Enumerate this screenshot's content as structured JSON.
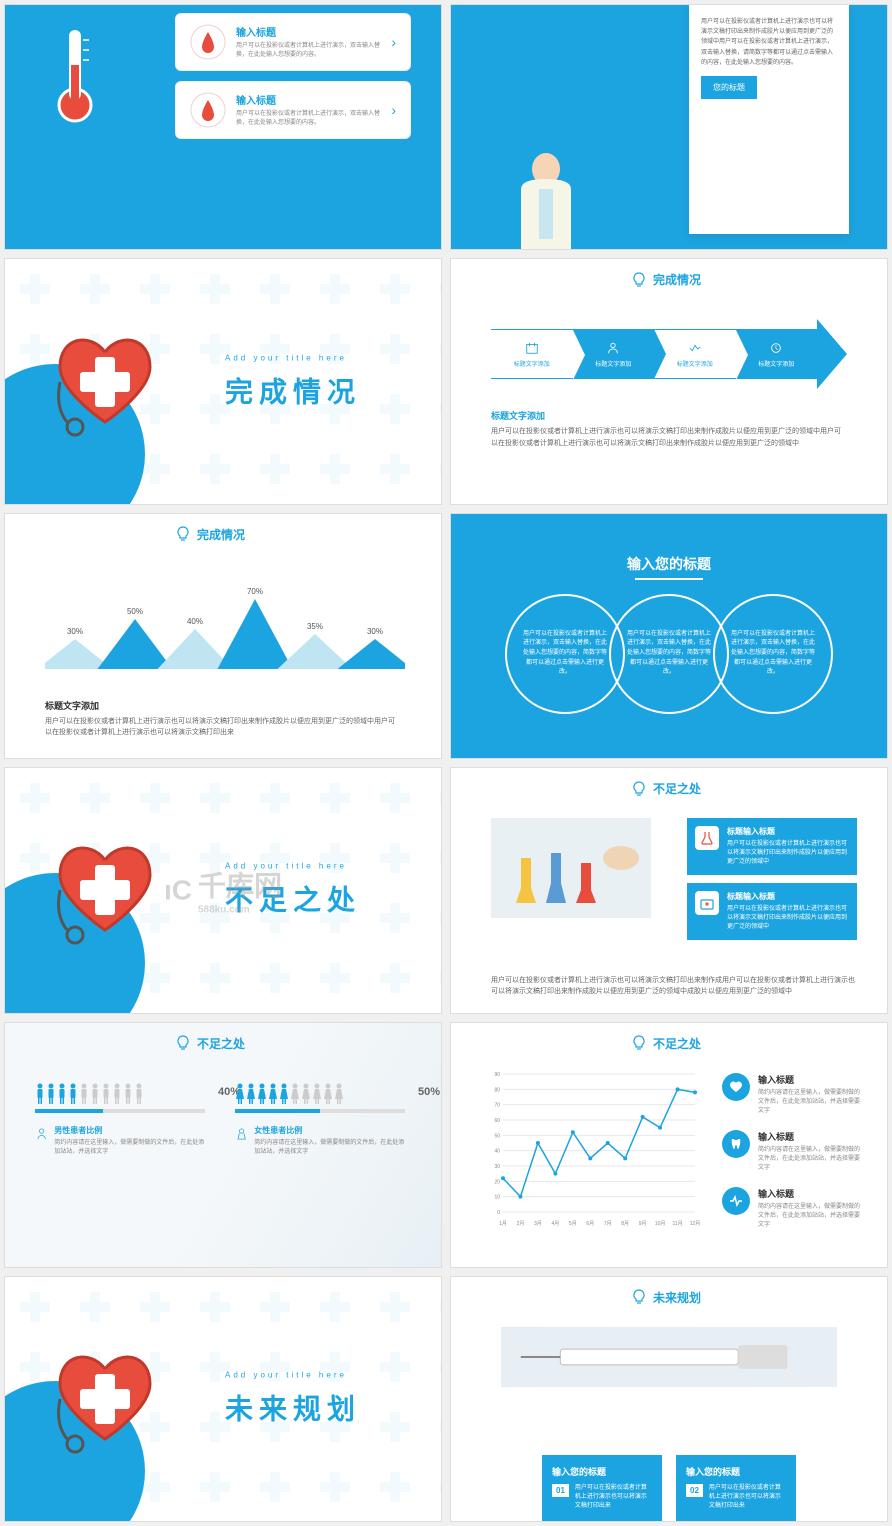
{
  "colors": {
    "primary": "#1ca4e0",
    "accent_red": "#e74c3c",
    "text_grey": "#888888",
    "bg": "#ffffff"
  },
  "watermark": {
    "main": "千库网",
    "sub": "588ku.com"
  },
  "slide1": {
    "cards": [
      {
        "title": "输入标题",
        "desc": "用户可以在投影仪或者计算机上进行演示，双击输入替换，在此处输入您想要的内容。"
      },
      {
        "title": "输入标题",
        "desc": "用户可以在投影仪或者计算机上进行演示，双击输入替换，在此处输入您想要的内容。"
      }
    ]
  },
  "slide2": {
    "desc": "用户可以在投影仪或者计算机上进行演示也可以将演示文稿打印出来制作成胶片以便应用到更广泛的领域中用户可以在投影仪或者计算机上进行演示，双击输入替换，请简数字等都可以通过点击需输入的内容，在此处输入您想要的内容。",
    "button": "您的标题"
  },
  "slide3": {
    "sub": "Add your title here",
    "main": "完成情况"
  },
  "slide4": {
    "header": "完成情况",
    "steps": [
      "标题文字添加",
      "标题文字添加",
      "标题文字添加",
      "标题文字添加"
    ],
    "desc_title": "标题文字添加",
    "desc": "用户可以在投影仪或者计算机上进行演示也可以将演示文稿打印出来制作成胶片以便应用到更广泛的领域中用户可以在投影仪或者计算机上进行演示也可以将演示文稿打印出来制作成胶片以便应用到更广泛的领域中"
  },
  "slide5": {
    "header": "完成情况",
    "mountains": {
      "values": [
        30,
        50,
        40,
        70,
        35,
        30
      ],
      "labels": [
        "30%",
        "50%",
        "40%",
        "70%",
        "35%",
        "30%"
      ],
      "dark_color": "#1ca4e0",
      "light_color": "#bfe4f2"
    },
    "desc_title": "标题文字添加",
    "desc": "用户可以在投影仪或者计算机上进行演示也可以将演示文稿打印出来制作成胶片以便应用到更广泛的领域中用户可以在投影仪或者计算机上进行演示也可以将演示文稿打印出来"
  },
  "slide6": {
    "title": "输入您的标题",
    "circles": [
      "用户可以在投影仪或者计算机上进行演示，双击输入替换，在此处输入您想要的内容，简数字等都可以通过点击需输入进行更改。",
      "用户可以在投影仪或者计算机上进行演示，双击输入替换，在此处输入您想要的内容，简数字等都可以通过点击需输入进行更改。",
      "用户可以在投影仪或者计算机上进行演示，双击输入替换，在此处输入您想要的内容，简数字等都可以通过点击需输入进行更改。"
    ]
  },
  "slide7": {
    "sub": "Add your title here",
    "main": "不足之处"
  },
  "slide8": {
    "header": "不足之处",
    "cards": [
      {
        "title": "标题输入标题",
        "desc": "用户可以在投影仪或者计算机上进行演示也可以将演示文稿打印出来制作成胶片以便应用到更广泛的领域中"
      },
      {
        "title": "标题输入标题",
        "desc": "用户可以在投影仪或者计算机上进行演示也可以将演示文稿打印出来制作成胶片以便应用到更广泛的领域中"
      }
    ],
    "desc": "用户可以在投影仪或者计算机上进行演示也可以将演示文稿打印出来制作成用户可以在投影仪或者计算机上进行演示也可以将演示文稿打印出来制作成胶片以便应用到更广泛的领域中成胶片以便应用到更广泛的领域中"
  },
  "slide9": {
    "header": "不足之处",
    "male": {
      "pct": 40,
      "pct_label": "40%",
      "title": "男性患者比例",
      "desc": "简约内容请在这里输入，做需要制做的文件后，在此处添加站站，并选择文字"
    },
    "female": {
      "pct": 50,
      "pct_label": "50%",
      "title": "女性患者比例",
      "desc": "简约内容请在这里输入，做需要制做的文件后，在此处添加站站，并选择文字"
    },
    "male_color": "#1ca4e0",
    "female_color": "#1ca4e0",
    "inactive_color": "#cccccc"
  },
  "slide10": {
    "header": "不足之处",
    "chart": {
      "type": "line",
      "x_labels": [
        "1月",
        "2月",
        "3月",
        "4月",
        "5月",
        "6月",
        "7月",
        "8月",
        "9月",
        "10月",
        "11月",
        "12月"
      ],
      "y_ticks": [
        0,
        10,
        20,
        30,
        40,
        50,
        60,
        70,
        80,
        90
      ],
      "values": [
        22,
        10,
        45,
        25,
        52,
        35,
        45,
        35,
        62,
        55,
        80,
        78
      ],
      "line_color": "#1ca4e0",
      "marker_color": "#1ca4e0",
      "grid_color": "#e8e8e8"
    },
    "items": [
      {
        "title": "输入标题",
        "desc": "简约内容请在这里输入，做需要制做的文件后，在此处添加站站，并选择需要文字"
      },
      {
        "title": "输入标题",
        "desc": "简约内容请在这里输入，做需要制做的文件后，在此处添加站站，并选择需要文字"
      },
      {
        "title": "输入标题",
        "desc": "简约内容请在这里输入，做需要制做的文件后，在此处添加站站，并选择需要文字"
      }
    ]
  },
  "slide11": {
    "sub": "Add your title here",
    "main": "未来规划"
  },
  "slide12": {
    "header": "未来规划",
    "cards": [
      {
        "num": "01",
        "title": "输入您的标题",
        "desc": "用户可以在投影仪或者计算机上进行演示也可以将演示文稿打印出来"
      },
      {
        "num": "02",
        "title": "输入您的标题",
        "desc": "用户可以在投影仪或者计算机上进行演示也可以将演示文稿打印出来"
      }
    ]
  }
}
